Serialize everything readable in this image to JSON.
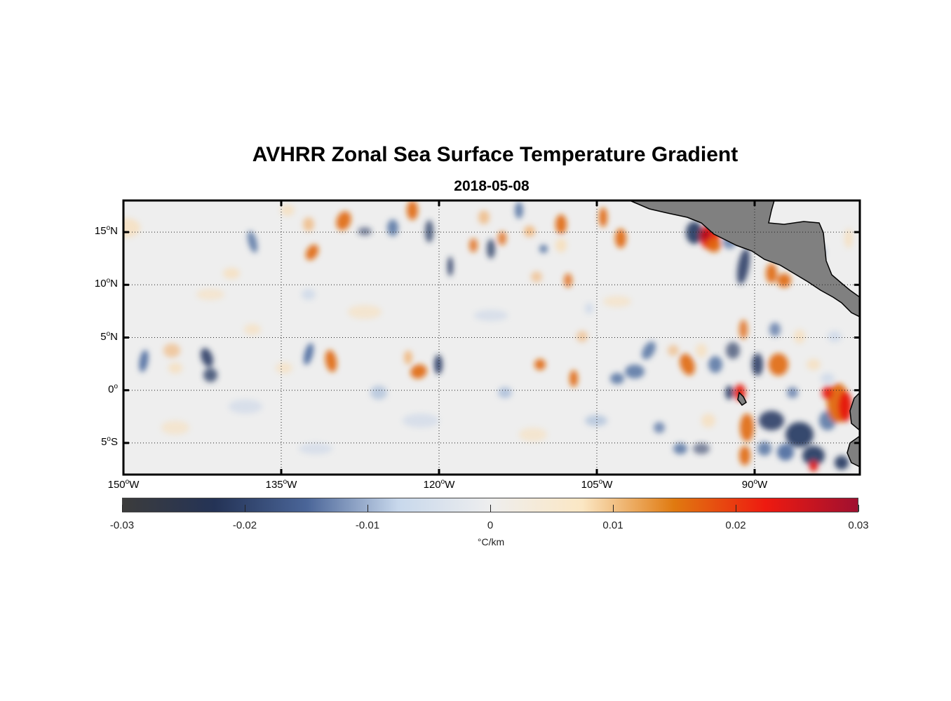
{
  "figure": {
    "title": "AVHRR Zonal Sea Surface Temperature Gradient",
    "subtitle": "2018-05-08"
  },
  "map": {
    "lon_range": [
      -150,
      -80
    ],
    "lat_range": [
      -8,
      18
    ],
    "lat_ticks": [
      {
        "base": "15",
        "deg": "o",
        "hem": "N"
      },
      {
        "base": "10",
        "deg": "o",
        "hem": "N"
      },
      {
        "base": "5",
        "deg": "o",
        "hem": "N"
      },
      {
        "base": "0",
        "deg": "o",
        "hem": ""
      },
      {
        "base": "5",
        "deg": "o",
        "hem": "S"
      }
    ],
    "lon_ticks": [
      {
        "base": "150",
        "deg": "o",
        "hem": "W"
      },
      {
        "base": "135",
        "deg": "o",
        "hem": "W"
      },
      {
        "base": "120",
        "deg": "o",
        "hem": "W"
      },
      {
        "base": "105",
        "deg": "o",
        "hem": "W"
      },
      {
        "base": "90",
        "deg": "o",
        "hem": "W"
      }
    ],
    "land_color": "#808080",
    "grid": "dotted"
  },
  "colorbar": {
    "ticks": [
      "-0.03",
      "-0.02",
      "-0.01",
      "0",
      "0.01",
      "0.02",
      "0.03"
    ],
    "units": "°C/km",
    "colors": [
      "#3c3c3c",
      "#243356",
      "#4a6598",
      "#c8d8ec",
      "#eeeeee",
      "#fbe7c4",
      "#e07a10",
      "#ee1a10",
      "#a01030"
    ]
  }
}
